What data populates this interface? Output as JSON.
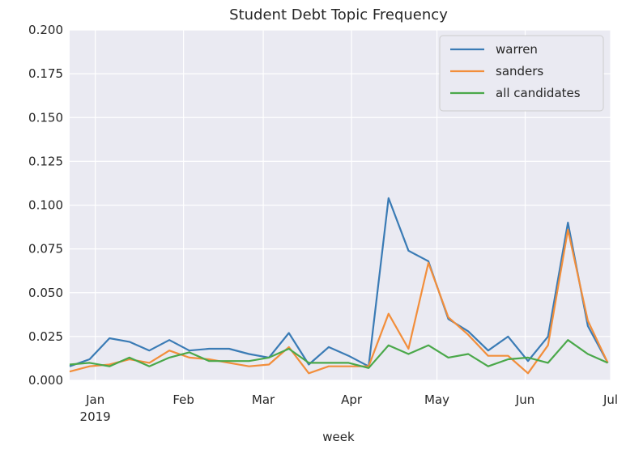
{
  "chart_data": {
    "type": "line",
    "title": "Student Debt Topic Frequency",
    "xlabel": "week",
    "ylabel": "",
    "ylim": [
      0,
      0.2
    ],
    "yticks": [
      "0.000",
      "0.025",
      "0.050",
      "0.075",
      "0.100",
      "0.125",
      "0.150",
      "0.175",
      "0.200"
    ],
    "xticks": [
      {
        "date": "2019-01-01",
        "label": "Jan",
        "sublabel": "2019"
      },
      {
        "date": "2019-02-01",
        "label": "Feb"
      },
      {
        "date": "2019-03-01",
        "label": "Mar"
      },
      {
        "date": "2019-04-01",
        "label": "Apr"
      },
      {
        "date": "2019-05-01",
        "label": "May"
      },
      {
        "date": "2019-06-01",
        "label": "Jun"
      },
      {
        "date": "2019-07-01",
        "label": "Jul"
      }
    ],
    "x": [
      "2018-12-23",
      "2018-12-30",
      "2019-01-06",
      "2019-01-13",
      "2019-01-20",
      "2019-01-27",
      "2019-02-03",
      "2019-02-10",
      "2019-02-17",
      "2019-02-24",
      "2019-03-03",
      "2019-03-10",
      "2019-03-17",
      "2019-03-24",
      "2019-03-31",
      "2019-04-07",
      "2019-04-14",
      "2019-04-21",
      "2019-04-28",
      "2019-05-05",
      "2019-05-12",
      "2019-05-19",
      "2019-05-26",
      "2019-06-02",
      "2019-06-09",
      "2019-06-16",
      "2019-06-23",
      "2019-06-30"
    ],
    "series": [
      {
        "name": "warren",
        "color": "#3a7bb5",
        "values": [
          0.008,
          0.012,
          0.024,
          0.022,
          0.017,
          0.023,
          0.017,
          0.018,
          0.018,
          0.015,
          0.013,
          0.027,
          0.009,
          0.019,
          0.014,
          0.008,
          0.104,
          0.074,
          0.068,
          0.035,
          0.028,
          0.017,
          0.025,
          0.011,
          0.025,
          0.09,
          0.031,
          0.01
        ]
      },
      {
        "name": "sanders",
        "color": "#f28e3b",
        "values": [
          0.005,
          0.008,
          0.009,
          0.012,
          0.01,
          0.017,
          0.013,
          0.012,
          0.01,
          0.008,
          0.009,
          0.019,
          0.004,
          0.008,
          0.008,
          0.008,
          0.038,
          0.018,
          0.067,
          0.036,
          0.026,
          0.014,
          0.014,
          0.004,
          0.02,
          0.086,
          0.034,
          0.01
        ]
      },
      {
        "name": "all candidates",
        "color": "#4aa84a",
        "values": [
          0.009,
          0.01,
          0.008,
          0.013,
          0.008,
          0.013,
          0.016,
          0.011,
          0.011,
          0.011,
          0.013,
          0.018,
          0.01,
          0.01,
          0.01,
          0.007,
          0.02,
          0.015,
          0.02,
          0.013,
          0.015,
          0.008,
          0.012,
          0.013,
          0.01,
          0.023,
          0.015,
          0.01
        ]
      }
    ],
    "grid": true,
    "legend_position": "top-right"
  }
}
